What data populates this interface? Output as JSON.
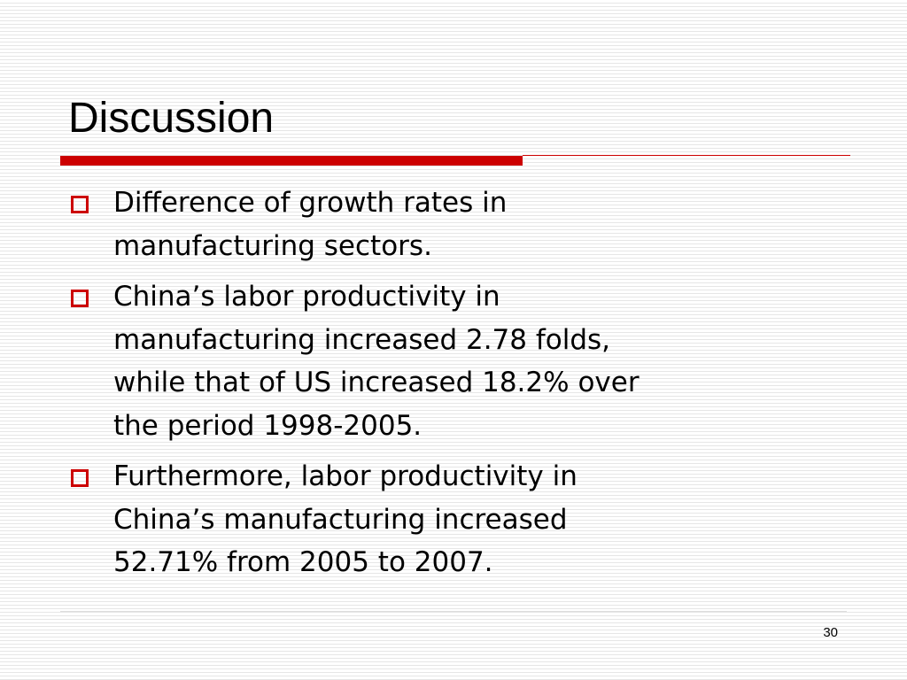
{
  "title": "Discussion",
  "bullets": [
    {
      "lines": [
        "Difference of growth rates in",
        "manufacturing sectors."
      ]
    },
    {
      "lines": [
        "China’s labor productivity in",
        "manufacturing increased 2.78 folds,",
        "while that of US increased 18.2% over",
        "the period 1998-2005."
      ]
    },
    {
      "lines": [
        "Furthermore, labor productivity in",
        "China’s manufacturing increased",
        "52.71% from 2005 to 2007."
      ]
    }
  ],
  "page_number": "30"
}
